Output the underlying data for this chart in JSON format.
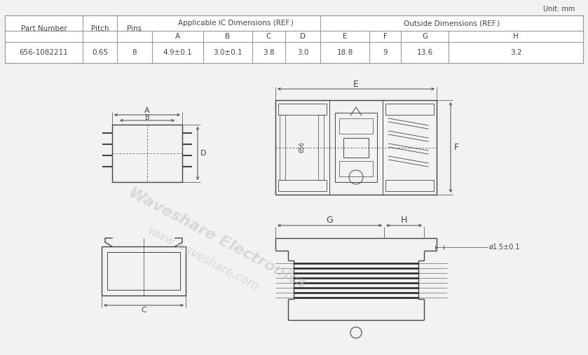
{
  "unit_label": "Unit: mm",
  "bg_color": "#f2f2f2",
  "table_data": {
    "data_row": [
      "656-1082211",
      "0.65",
      "8",
      "4.9±0.1",
      "3.0±0.1",
      "3.8",
      "3.0",
      "18.8",
      "9",
      "13.6",
      "3.2"
    ]
  },
  "watermark_text1": "Waveshare Electronics",
  "watermark_text2": "www.waveshare.com",
  "line_color": "#444444",
  "dim_color": "#444444"
}
